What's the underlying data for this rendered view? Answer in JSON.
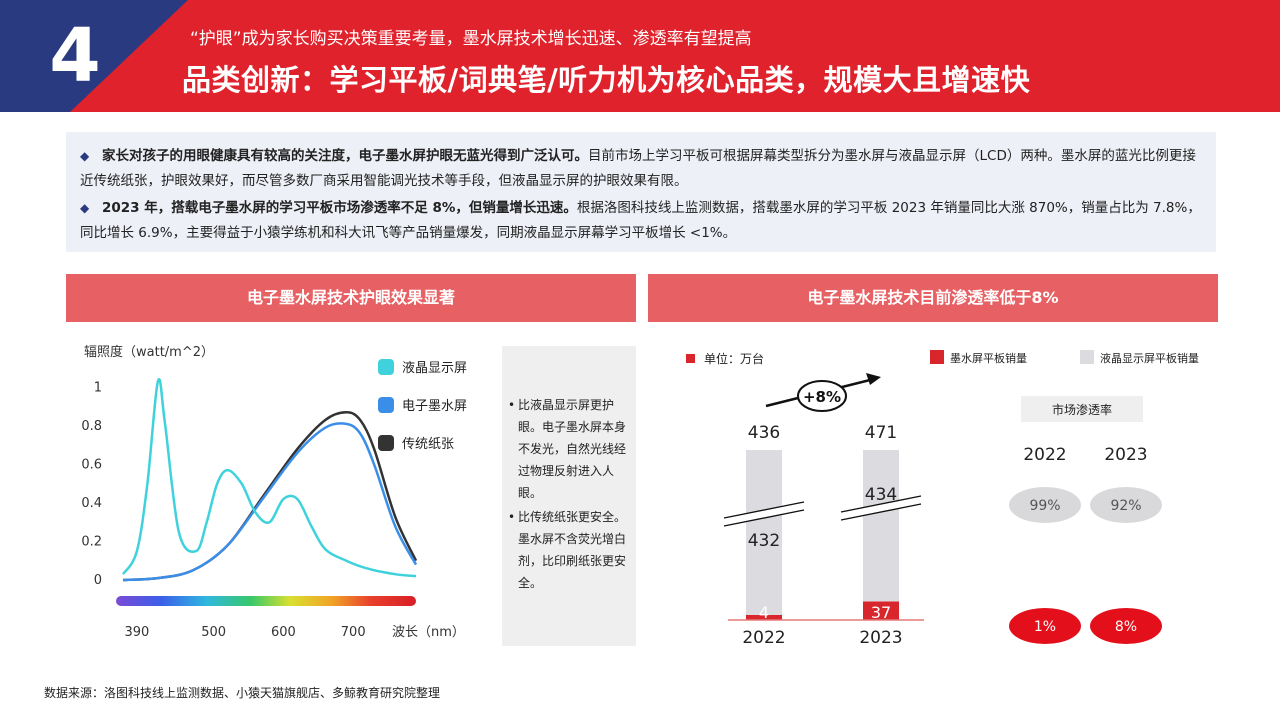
{
  "header": {
    "section_number": "4",
    "subtitle": "“护眼”成为家长购买决策重要考量，墨水屏技术增长迅速、渗透率有望提高",
    "title": "品类创新：学习平板/词典笔/听力机为核心品类，规模大且增速快"
  },
  "intro": {
    "bullet1_bold": "家长对孩子的用眼健康具有较高的关注度，电子墨水屏护眼无蓝光得到广泛认可。",
    "bullet1_text": "目前市场上学习平板可根据屏幕类型拆分为墨水屏与液晶显示屏（LCD）两种。墨水屏的蓝光比例更接近传统纸张，护眼效果好，而尽管多数厂商采用智能调光技术等手段，但液晶显示屏的护眼效果有限。",
    "bullet2_bold": "2023 年，搭载电子墨水屏的学习平板市场渗透率不足 8%，但销量增长迅速。",
    "bullet2_text": "根据洛图科技线上监测数据，搭载墨水屏的学习平板 2023 年销量同比大涨 870%，销量占比为 7.8%，同比增长 6.9%，主要得益于小猿学练机和科大讯飞等产品销量爆发，同期液晶显示屏幕学习平板增长 <1%。"
  },
  "left_panel": {
    "header": "电子墨水屏技术护眼效果显著",
    "notes": [
      "比液晶显示屏更护眼。电子墨水屏本身不发光，自然光线经过物理反射进入人眼。",
      "比传统纸张更安全。墨水屏不含荧光增白剂，比印刷纸张更安全。"
    ]
  },
  "right_panel": {
    "header": "电子墨水屏技术目前渗透率低于8%"
  },
  "footer": {
    "source": "数据来源：洛图科技线上监测数据、小猿天猫旗舰店、多鲸教育研究院整理"
  },
  "chart_data": [
    {
      "type": "line",
      "ylabel": "辐照度（watt/m^2）",
      "xlabel": "波长（nm）",
      "x_ticks": [
        390,
        500,
        600,
        700
      ],
      "y_ticks": [
        0,
        0.2,
        0.4,
        0.6,
        0.8,
        1
      ],
      "xlim": [
        360,
        790
      ],
      "ylim": [
        0,
        1.1
      ],
      "series": [
        {
          "name": "液晶显示屏",
          "color": "#3fd2dc",
          "x": [
            370,
            390,
            405,
            420,
            430,
            450,
            475,
            490,
            505,
            520,
            540,
            560,
            580,
            600,
            620,
            640,
            660,
            690,
            720,
            760,
            790
          ],
          "y": [
            0.03,
            0.15,
            0.5,
            1.03,
            0.82,
            0.25,
            0.15,
            0.3,
            0.5,
            0.57,
            0.5,
            0.35,
            0.3,
            0.42,
            0.42,
            0.28,
            0.16,
            0.1,
            0.06,
            0.03,
            0.02
          ]
        },
        {
          "name": "电子墨水屏",
          "color": "#3b8ee8",
          "x": [
            370,
            420,
            470,
            520,
            570,
            620,
            660,
            690,
            710,
            730,
            760,
            790
          ],
          "y": [
            0.0,
            0.01,
            0.05,
            0.18,
            0.42,
            0.66,
            0.79,
            0.81,
            0.76,
            0.6,
            0.28,
            0.08
          ]
        },
        {
          "name": "传统纸张",
          "color": "#333333",
          "x": [
            370,
            420,
            470,
            520,
            570,
            620,
            660,
            690,
            710,
            730,
            760,
            790
          ],
          "y": [
            0.0,
            0.01,
            0.05,
            0.18,
            0.43,
            0.68,
            0.83,
            0.87,
            0.83,
            0.68,
            0.33,
            0.1
          ]
        }
      ]
    },
    {
      "type": "bar",
      "unit": "单位：万台",
      "categories": [
        "2022",
        "2023"
      ],
      "series": [
        {
          "name": "墨水屏平板销量",
          "color": "#d9252c",
          "values": [
            4,
            37
          ]
        },
        {
          "name": "液晶显示屏平板销量",
          "color": "#dcdbe0",
          "values": [
            432,
            434
          ]
        }
      ],
      "totals": [
        436,
        471
      ],
      "growth_label": "+8%"
    },
    {
      "type": "table",
      "title": "市场渗透率",
      "columns": [
        "2022",
        "2023"
      ],
      "rows": [
        {
          "name": "液晶显示屏平板",
          "color": "#d9d9db",
          "text_color": "#555555",
          "values": [
            "99%",
            "92%"
          ]
        },
        {
          "name": "墨水屏平板",
          "color": "#e3101c",
          "text_color": "#ffffff",
          "values": [
            "1%",
            "8%"
          ]
        }
      ]
    }
  ]
}
